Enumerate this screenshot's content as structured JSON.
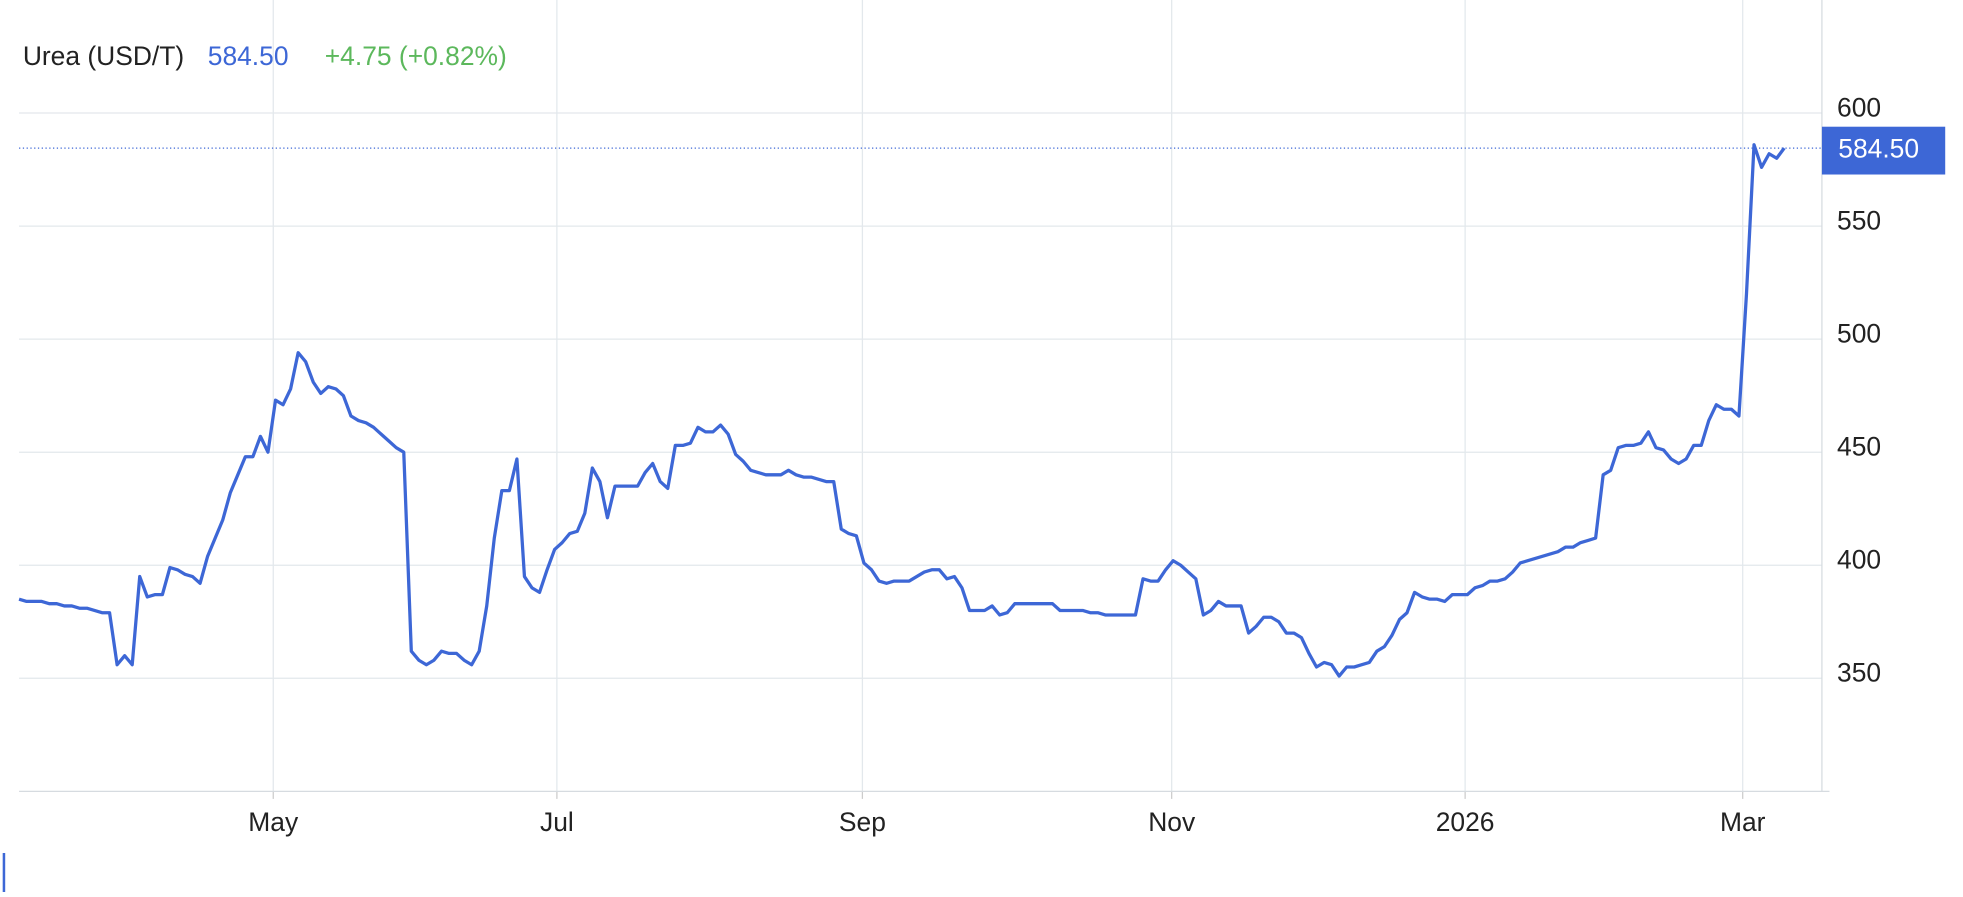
{
  "chart_data": {
    "type": "line",
    "title": "Urea (USD/T)",
    "last_value": {
      "value": 584.5,
      "label": "584.50"
    },
    "change_label": "+4.75 (+0.82%)",
    "series": [
      {
        "name": "Urea (USD/T)",
        "color": "#3d67d6",
        "values": [
          385,
          384,
          384,
          384,
          383,
          383,
          382,
          382,
          381,
          381,
          380,
          379,
          379,
          356,
          360,
          356,
          395,
          386,
          387,
          387,
          399,
          398,
          396,
          395,
          392,
          404,
          412,
          420,
          432,
          440,
          448,
          448,
          457,
          450,
          473,
          471,
          478,
          494,
          490,
          481,
          476,
          479,
          478,
          475,
          466,
          464,
          463,
          461,
          458,
          455,
          452,
          450,
          362,
          358,
          356,
          358,
          362,
          361,
          361,
          358,
          356,
          362,
          382,
          412,
          433,
          433,
          447,
          395,
          390,
          388,
          398,
          407,
          410,
          414,
          415,
          423,
          443,
          437,
          421,
          435,
          435,
          435,
          435,
          441,
          445,
          437,
          434,
          453,
          453,
          454,
          461,
          459,
          459,
          462,
          458,
          449,
          446,
          442,
          441,
          440,
          440,
          440,
          442,
          440,
          439,
          439,
          438,
          437,
          437,
          416,
          414,
          413,
          401,
          398,
          393,
          392,
          393,
          393,
          393,
          395,
          397,
          398,
          398,
          394,
          395,
          390,
          380,
          380,
          380,
          382,
          378,
          379,
          383,
          383,
          383,
          383,
          383,
          383,
          380,
          380,
          380,
          380,
          379,
          379,
          378,
          378,
          378,
          378,
          378,
          394,
          393,
          393,
          398,
          402,
          400,
          397,
          394,
          378,
          380,
          384,
          382,
          382,
          382,
          370,
          373,
          377,
          377,
          375,
          370,
          370,
          368,
          361,
          355,
          357,
          356,
          351,
          355,
          355,
          356,
          357,
          362,
          364,
          369,
          376,
          379,
          388,
          386,
          385,
          385,
          384,
          387,
          387,
          387,
          390,
          391,
          393,
          393,
          394,
          397,
          401,
          402,
          403,
          404,
          405,
          406,
          408,
          408,
          410,
          411,
          412,
          440,
          442,
          452,
          453,
          453,
          454,
          459,
          452,
          451,
          447,
          445,
          447,
          453,
          453,
          464,
          471,
          469,
          469,
          466,
          520,
          586,
          576,
          582,
          580,
          584.5
        ]
      }
    ],
    "xlim": [
      0,
      239
    ],
    "xticks": [
      {
        "value": 33.7,
        "label": "May"
      },
      {
        "value": 71.3,
        "label": "Jul"
      },
      {
        "value": 111.8,
        "label": "Sep"
      },
      {
        "value": 152.8,
        "label": "Nov"
      },
      {
        "value": 191.7,
        "label": "2026"
      },
      {
        "value": 228.5,
        "label": "Mar"
      }
    ],
    "ylim": [
      300,
      650
    ],
    "yticks": [
      350,
      400,
      450,
      500,
      550,
      600
    ],
    "grid": true
  }
}
